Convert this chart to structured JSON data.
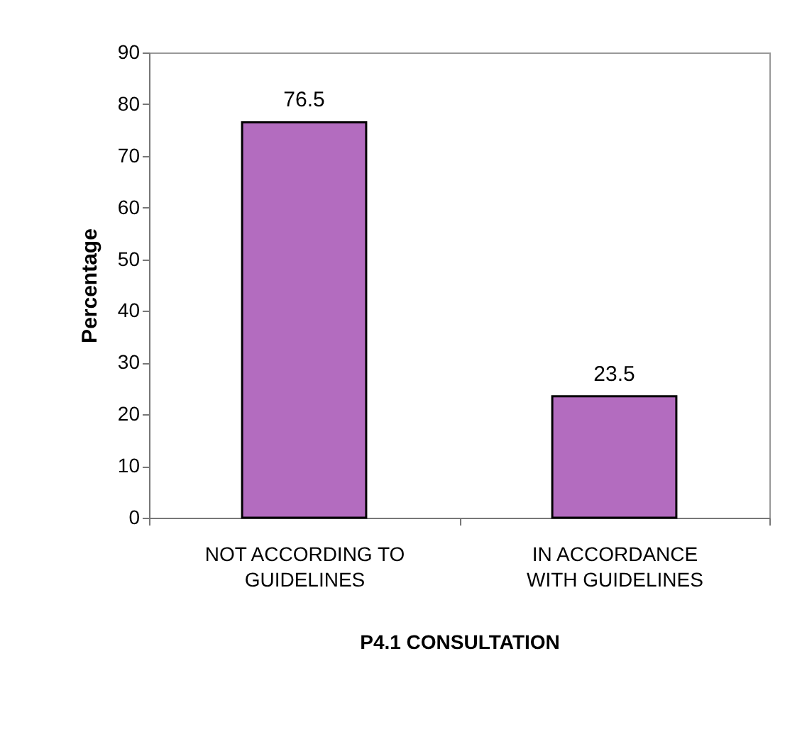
{
  "chart_data": {
    "type": "bar",
    "xlabel": "P4.1 CONSULTATION",
    "ylabel": "Percentage",
    "categories": [
      "NOT ACCORDING TO GUIDELINES",
      "IN ACCORDANCE WITH GUIDELINES"
    ],
    "values": [
      76.5,
      23.5
    ],
    "color": "#b36cbf",
    "ylim": [
      0,
      90
    ],
    "yticks": [
      0,
      10,
      20,
      30,
      40,
      50,
      60,
      70,
      80,
      90
    ],
    "grid": false,
    "data_labels": true
  }
}
